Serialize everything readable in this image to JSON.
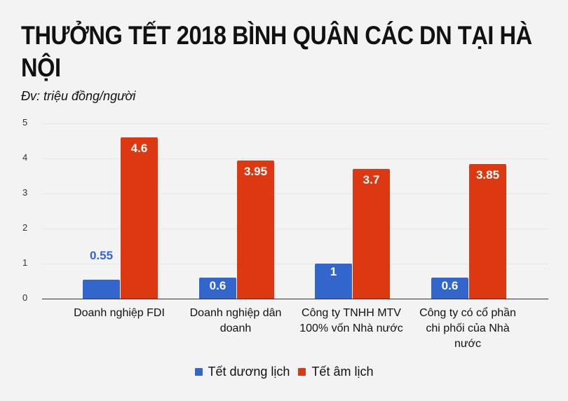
{
  "title": "THƯỞNG TẾT 2018 BÌNH QUÂN CÁC DN TẠI HÀ NỘI",
  "subtitle": "Đv: triệu đồng/người",
  "yticks": [
    "0",
    "1",
    "2",
    "3",
    "4",
    "5"
  ],
  "categories": [
    "Doanh nghiệp FDI",
    "Doanh nghiệp dân doanh",
    "Công ty TNHH MTV 100% vốn Nhà nước",
    "Công ty có cổ phần chi phối của Nhà nước"
  ],
  "labels": {
    "blue": [
      "0.55",
      "0.6",
      "1",
      "0.6"
    ],
    "red": [
      "4.6",
      "3.95",
      "3.7",
      "3.85"
    ]
  },
  "legend": [
    {
      "label": "Tết dương lịch",
      "color": "#3366cc"
    },
    {
      "label": "Tết âm lịch",
      "color": "#dc3912"
    }
  ],
  "chart_data": {
    "type": "bar",
    "title": "THƯỞNG TẾT 2018 BÌNH QUÂN CÁC DN TẠI HÀ NỘI",
    "subtitle": "Đv: triệu đồng/người",
    "categories": [
      "Doanh nghiệp FDI",
      "Doanh nghiệp dân doanh",
      "Công ty TNHH MTV 100% vốn Nhà nước",
      "Công ty có cổ phần chi phối của Nhà nước"
    ],
    "series": [
      {
        "name": "Tết dương lịch",
        "color": "#3366cc",
        "values": [
          0.55,
          0.6,
          1,
          0.6
        ]
      },
      {
        "name": "Tết âm lịch",
        "color": "#dc3912",
        "values": [
          4.6,
          3.95,
          3.7,
          3.85
        ]
      }
    ],
    "xlabel": "",
    "ylabel": "",
    "ylim": [
      0,
      5
    ],
    "yticks": [
      0,
      1,
      2,
      3,
      4,
      5
    ],
    "grid": true,
    "legend_position": "bottom"
  }
}
